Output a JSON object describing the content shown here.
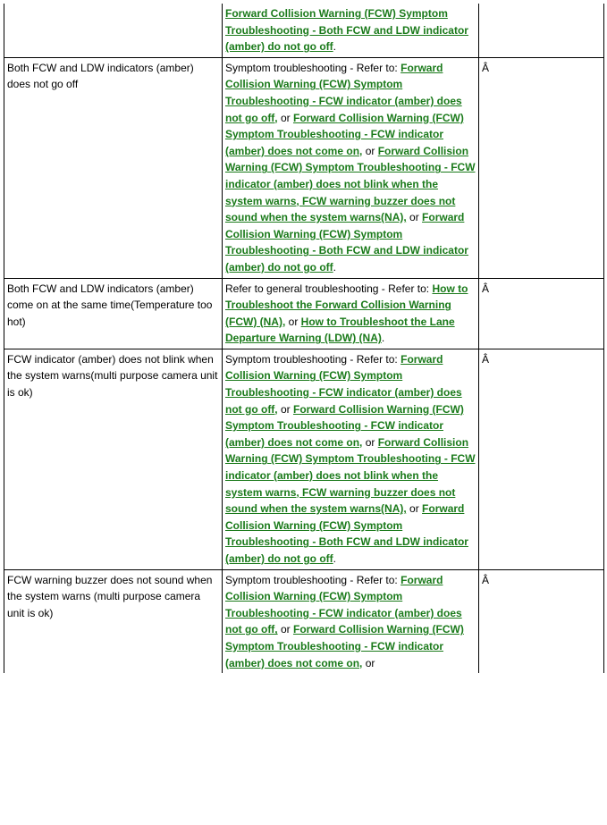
{
  "text": {
    "symTrRefer": "Symptom troubleshooting - Refer to:",
    "genTrRefer": "Refer to general troubleshooting - Refer to:",
    "or": " or ",
    "orComma": " or",
    "period": "."
  },
  "links": {
    "fcwNotGoOff": "Forward Collision Warning (FCW) Symptom Troubleshooting - FCW indicator (amber) does not go off,",
    "fcwNotComeOn": "Forward Collision Warning (FCW) Symptom Troubleshooting - FCW indicator (amber) does not come on,",
    "fcwNotBlink": "Forward Collision Warning (FCW) Symptom Troubleshooting - FCW indicator (amber) does not blink when the system warns, FCW warning buzzer does not sound when the system warns(NA),",
    "fcwBothNotGoOff": "Forward Collision Warning (FCW) Symptom Troubleshooting - Both FCW and LDW indicator (amber) do not go off",
    "howToFCW": "How to Troubleshoot the Forward Collision Warning (FCW) (NA),",
    "howToLDW": "How to Troubleshoot the Lane Departure Warning (LDW) (NA)"
  },
  "rows": {
    "r0_c3": "",
    "r1_c1": "Both FCW and LDW indicators (amber) does not go off",
    "r1_c3": "Â ",
    "r2_c1": "Both FCW and LDW indicators (amber) come on at the same time(Temperature too hot)",
    "r2_c3": "Â ",
    "r3_c1": "FCW indicator (amber) does not blink when the system warns(multi purpose camera unit is ok)",
    "r3_c3": "Â ",
    "r4_c1": "FCW warning buzzer does not sound when the system warns (multi purpose camera unit is ok)",
    "r4_c3": "Â "
  }
}
